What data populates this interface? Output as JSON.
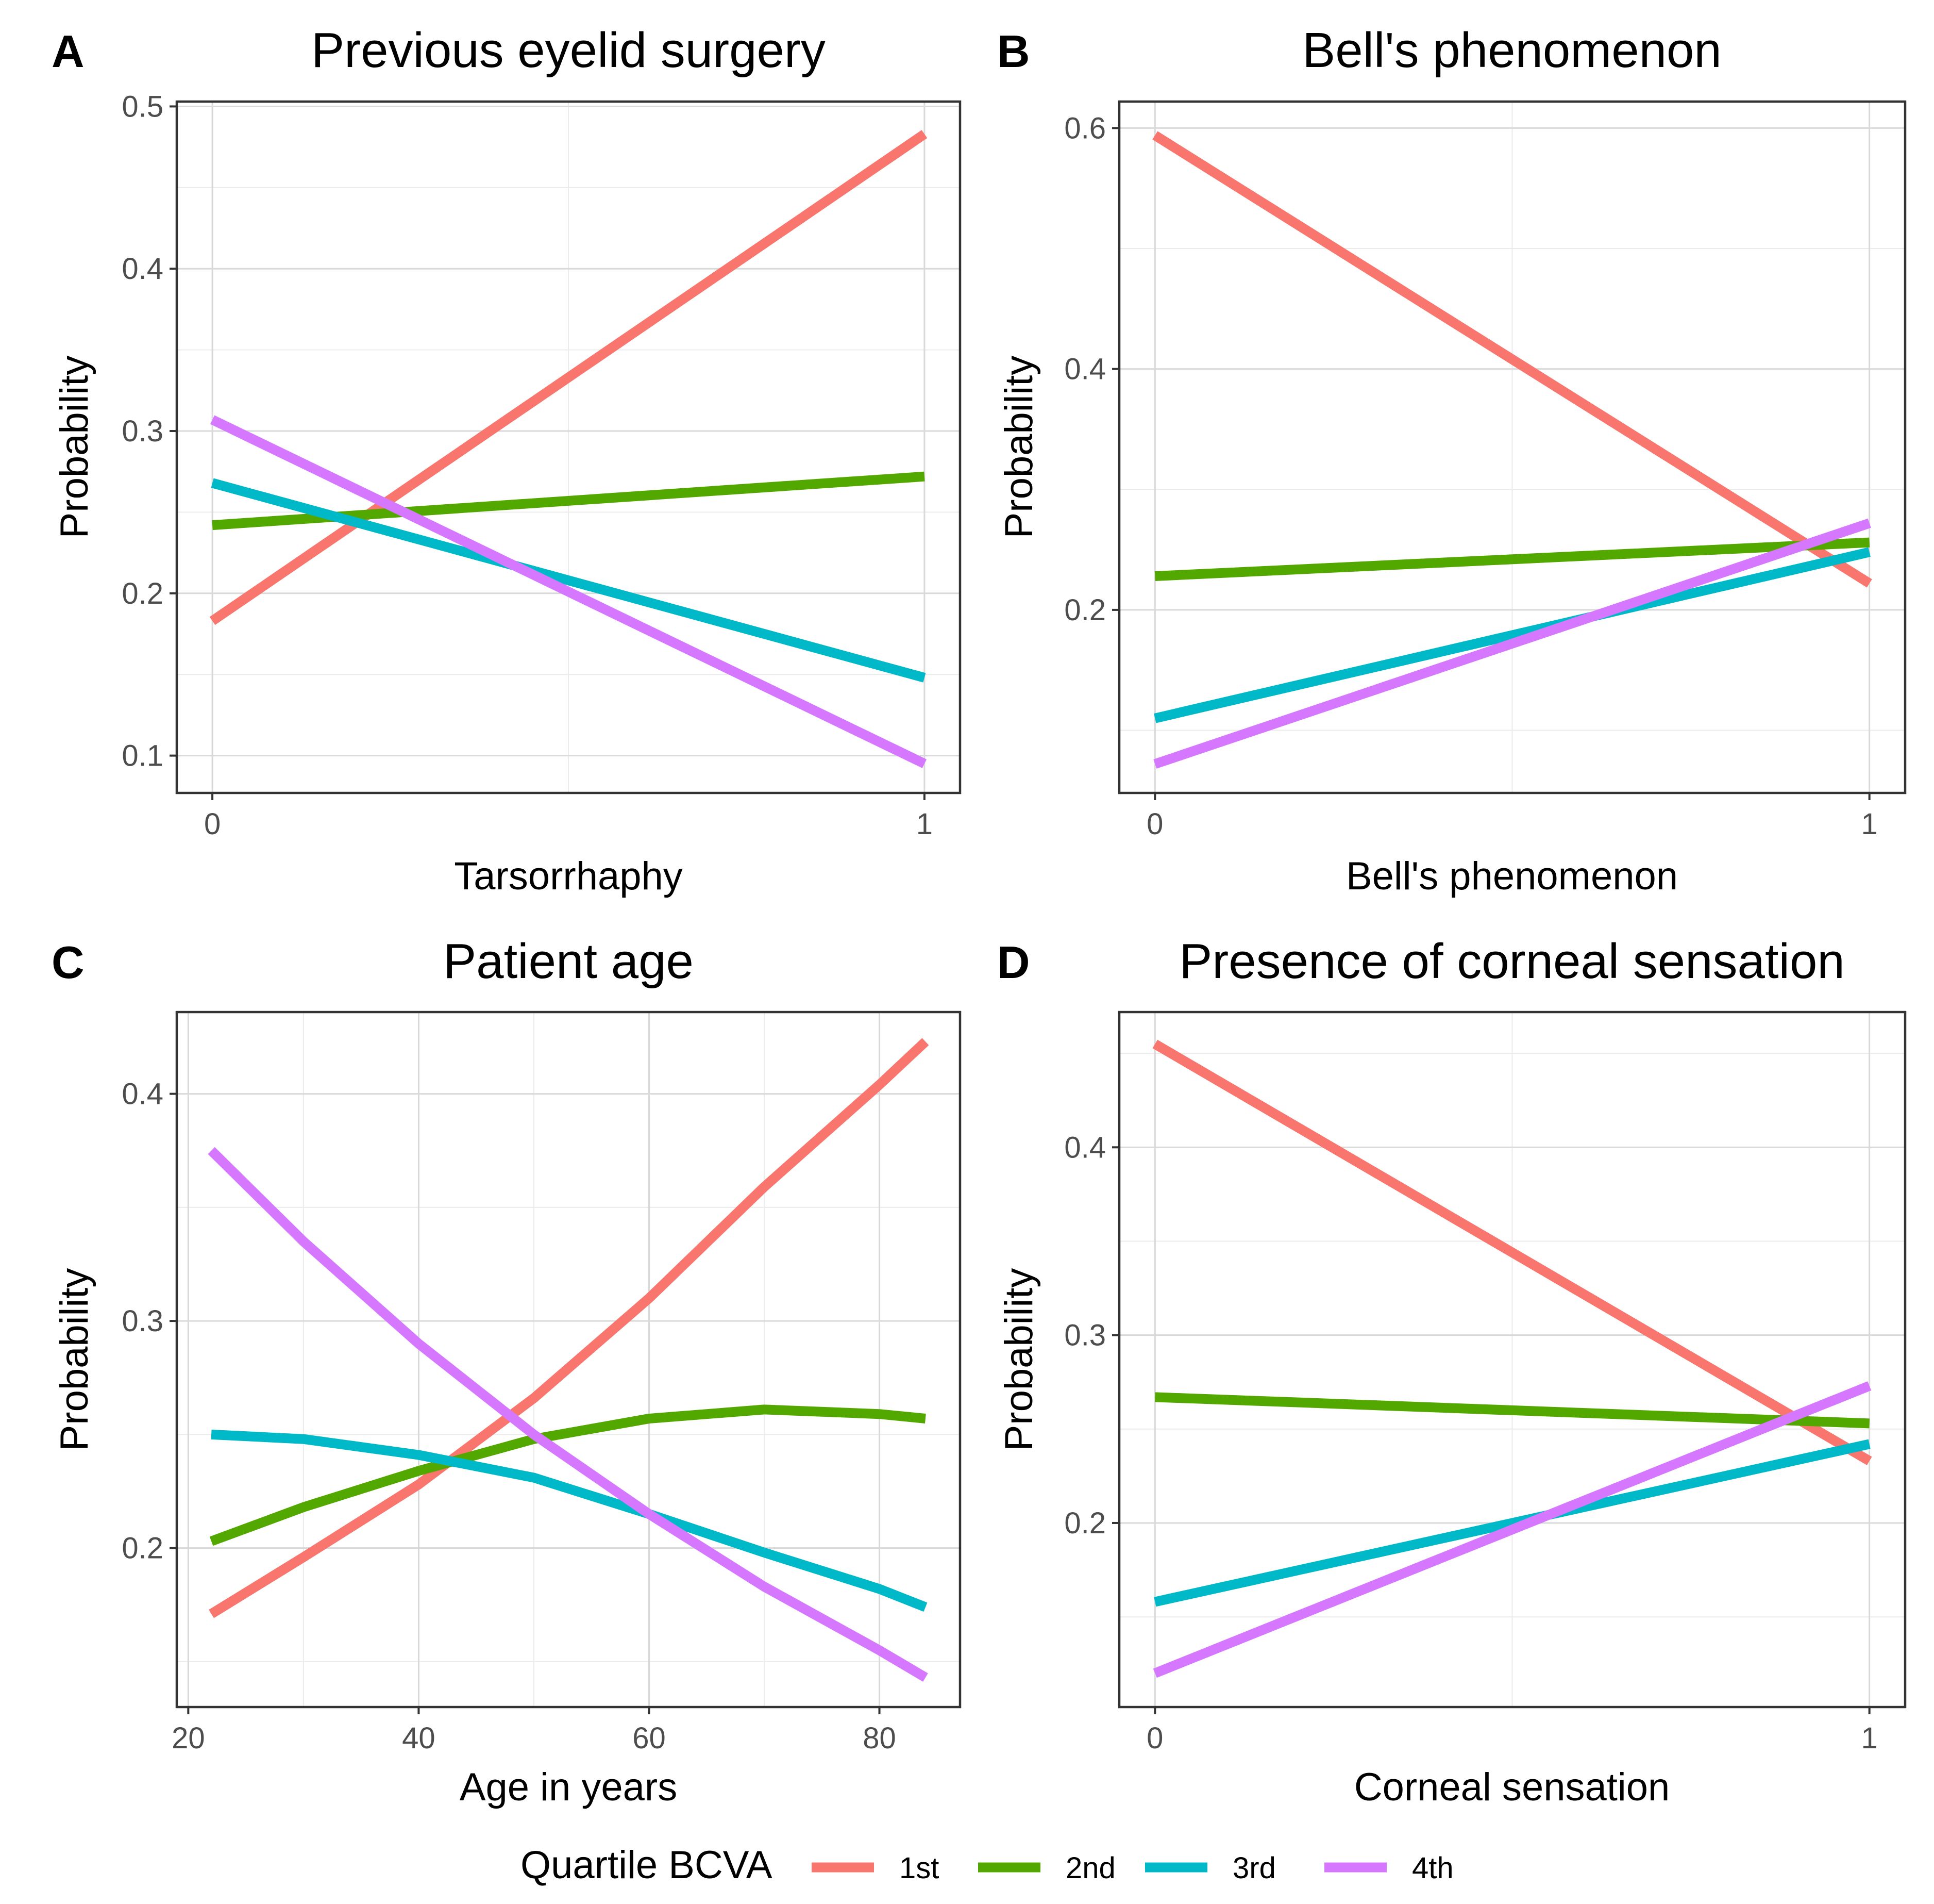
{
  "chart_data": [
    {
      "type": "line",
      "panel_letter": "A",
      "title": "Previous eyelid surgery",
      "xlabel": "Tarsorrhaphy",
      "ylabel": "Probability",
      "xlim": [
        -0.05,
        1.05
      ],
      "ylim": [
        0.077,
        0.503
      ],
      "x_ticks": [
        0,
        1
      ],
      "x_tick_labels": [
        "0",
        "1"
      ],
      "y_ticks": [
        0.1,
        0.2,
        0.3,
        0.4,
        0.5
      ],
      "y_tick_labels": [
        "0.1",
        "0.2",
        "0.3",
        "0.4",
        "0.5"
      ],
      "grid": true,
      "series": [
        {
          "name": "1st",
          "x": [
            0,
            1
          ],
          "values": [
            0.183,
            0.483
          ]
        },
        {
          "name": "2nd",
          "x": [
            0,
            1
          ],
          "values": [
            0.242,
            0.272
          ]
        },
        {
          "name": "3rd",
          "x": [
            0,
            1
          ],
          "values": [
            0.268,
            0.148
          ]
        },
        {
          "name": "4th",
          "x": [
            0,
            1
          ],
          "values": [
            0.307,
            0.095
          ]
        }
      ]
    },
    {
      "type": "line",
      "panel_letter": "B",
      "title": "Bell's phenomenon",
      "xlabel": "Bell's phenomenon",
      "ylabel": "Probability",
      "xlim": [
        -0.05,
        1.05
      ],
      "ylim": [
        0.048,
        0.622
      ],
      "x_ticks": [
        0,
        1
      ],
      "x_tick_labels": [
        "0",
        "1"
      ],
      "y_ticks": [
        0.2,
        0.4,
        0.6
      ],
      "y_tick_labels": [
        "0.2",
        "0.4",
        "0.6"
      ],
      "grid": true,
      "series": [
        {
          "name": "1st",
          "x": [
            0,
            1
          ],
          "values": [
            0.594,
            0.222
          ]
        },
        {
          "name": "2nd",
          "x": [
            0,
            1
          ],
          "values": [
            0.228,
            0.256
          ]
        },
        {
          "name": "3rd",
          "x": [
            0,
            1
          ],
          "values": [
            0.11,
            0.248
          ]
        },
        {
          "name": "4th",
          "x": [
            0,
            1
          ],
          "values": [
            0.072,
            0.272
          ]
        }
      ]
    },
    {
      "type": "line",
      "panel_letter": "C",
      "title": "Patient age",
      "xlabel": "Age in years",
      "ylabel": "Probability",
      "xlim": [
        19,
        87
      ],
      "ylim": [
        0.13,
        0.436
      ],
      "x_ticks": [
        20,
        40,
        60,
        80
      ],
      "x_tick_labels": [
        "20",
        "40",
        "60",
        "80"
      ],
      "y_ticks": [
        0.2,
        0.3,
        0.4
      ],
      "y_tick_labels": [
        "0.2",
        "0.3",
        "0.4"
      ],
      "grid": true,
      "series": [
        {
          "name": "1st",
          "x": [
            22,
            30,
            40,
            50,
            60,
            70,
            80,
            84
          ],
          "values": [
            0.171,
            0.196,
            0.228,
            0.266,
            0.31,
            0.359,
            0.404,
            0.423
          ]
        },
        {
          "name": "2nd",
          "x": [
            22,
            30,
            40,
            50,
            60,
            70,
            80,
            84
          ],
          "values": [
            0.203,
            0.218,
            0.234,
            0.248,
            0.257,
            0.261,
            0.259,
            0.257
          ]
        },
        {
          "name": "3rd",
          "x": [
            22,
            30,
            40,
            50,
            60,
            70,
            80,
            84
          ],
          "values": [
            0.25,
            0.248,
            0.241,
            0.231,
            0.215,
            0.198,
            0.182,
            0.174
          ]
        },
        {
          "name": "4th",
          "x": [
            22,
            30,
            40,
            50,
            60,
            70,
            80,
            84
          ],
          "values": [
            0.375,
            0.335,
            0.29,
            0.25,
            0.215,
            0.183,
            0.155,
            0.143
          ]
        }
      ]
    },
    {
      "type": "line",
      "panel_letter": "D",
      "title": "Presence of corneal sensation",
      "xlabel": "Corneal sensation",
      "ylabel": "Probability",
      "xlim": [
        -0.05,
        1.05
      ],
      "ylim": [
        0.102,
        0.472
      ],
      "x_ticks": [
        0,
        1
      ],
      "x_tick_labels": [
        "0",
        "1"
      ],
      "y_ticks": [
        0.2,
        0.3,
        0.4
      ],
      "y_tick_labels": [
        "0.2",
        "0.3",
        "0.4"
      ],
      "grid": true,
      "series": [
        {
          "name": "1st",
          "x": [
            0,
            1
          ],
          "values": [
            0.455,
            0.233
          ]
        },
        {
          "name": "2nd",
          "x": [
            0,
            1
          ],
          "values": [
            0.267,
            0.253
          ]
        },
        {
          "name": "3rd",
          "x": [
            0,
            1
          ],
          "values": [
            0.158,
            0.242
          ]
        },
        {
          "name": "4th",
          "x": [
            0,
            1
          ],
          "values": [
            0.12,
            0.273
          ]
        }
      ]
    }
  ],
  "legend": {
    "title": "Quartile BCVA",
    "position": "bottom",
    "entries": [
      "1st",
      "2nd",
      "3rd",
      "4th"
    ]
  },
  "colors": {
    "1st": "#F8766D",
    "2nd": "#53A800",
    "3rd": "#00B9C8",
    "4th": "#D677FF"
  }
}
